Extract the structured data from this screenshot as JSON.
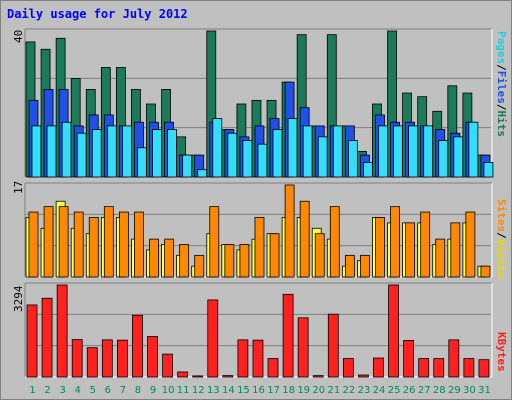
{
  "title": "Daily usage for July 2012",
  "colors": {
    "hits": "#1a7a5a",
    "files": "#2050e8",
    "pages": "#33ddff",
    "visits": "#ffff44",
    "sites": "#ff8800",
    "kbytes": "#ff2020",
    "day_label_weekday": "#008a5a",
    "day_label_weekend": "#008a5a",
    "title": "#0000ff"
  },
  "panels": {
    "top": {
      "max_label": "40",
      "legend": [
        {
          "text": "Pages",
          "color": "#22cce0"
        },
        {
          "text": "/",
          "color": "#000000"
        },
        {
          "text": "Files",
          "color": "#2050e8"
        },
        {
          "text": "/",
          "color": "#000000"
        },
        {
          "text": "Hits",
          "color": "#1a7a5a"
        }
      ]
    },
    "middle": {
      "max_label": "17",
      "legend": [
        {
          "text": "Sites",
          "color": "#ff8800"
        },
        {
          "text": "/",
          "color": "#000000"
        },
        {
          "text": "Visits",
          "color": "#e8d800"
        }
      ]
    },
    "bottom": {
      "max_label": "3294",
      "legend": [
        {
          "text": "KBytes",
          "color": "#ff2020"
        }
      ]
    }
  },
  "chart_data": [
    {
      "type": "bar",
      "title": "Daily usage for July 2012",
      "categories": [
        "1",
        "2",
        "3",
        "4",
        "5",
        "6",
        "7",
        "8",
        "9",
        "10",
        "11",
        "12",
        "13",
        "14",
        "15",
        "16",
        "17",
        "18",
        "19",
        "20",
        "21",
        "22",
        "23",
        "24",
        "25",
        "26",
        "27",
        "28",
        "29",
        "30",
        "31"
      ],
      "ylim": [
        0,
        40
      ],
      "series": [
        {
          "name": "Hits",
          "values": [
            37,
            35,
            38,
            27,
            24,
            30,
            30,
            24,
            20,
            24,
            11,
            6,
            40,
            13,
            20,
            21,
            21,
            26,
            39,
            14,
            39,
            14,
            7,
            20,
            40,
            23,
            22,
            18,
            25,
            23,
            6
          ]
        },
        {
          "name": "Files",
          "values": [
            21,
            24,
            24,
            14,
            17,
            17,
            14,
            15,
            15,
            15,
            6,
            6,
            15,
            13,
            11,
            14,
            16,
            26,
            19,
            14,
            14,
            14,
            6,
            17,
            15,
            15,
            14,
            13,
            12,
            15,
            6
          ]
        },
        {
          "name": "Pages",
          "values": [
            14,
            14,
            15,
            12,
            13,
            14,
            14,
            8,
            13,
            13,
            6,
            2,
            16,
            12,
            10,
            9,
            13,
            16,
            14,
            11,
            14,
            10,
            4,
            14,
            14,
            14,
            14,
            10,
            11,
            15,
            4
          ]
        }
      ]
    },
    {
      "type": "bar",
      "categories": [
        "1",
        "2",
        "3",
        "4",
        "5",
        "6",
        "7",
        "8",
        "9",
        "10",
        "11",
        "12",
        "13",
        "14",
        "15",
        "16",
        "17",
        "18",
        "19",
        "20",
        "21",
        "22",
        "23",
        "24",
        "25",
        "26",
        "27",
        "28",
        "29",
        "30",
        "31"
      ],
      "ylim": [
        0,
        17
      ],
      "series": [
        {
          "name": "Visits",
          "values": [
            11,
            9,
            14,
            9,
            8,
            11,
            11,
            7,
            5,
            6,
            4,
            2,
            8,
            6,
            5,
            7,
            8,
            11,
            11,
            9,
            7,
            2,
            3,
            11,
            10,
            10,
            10,
            6,
            7,
            10,
            2
          ]
        },
        {
          "name": "Sites",
          "values": [
            12,
            13,
            13,
            12,
            11,
            13,
            12,
            12,
            7,
            7,
            6,
            4,
            13,
            6,
            6,
            11,
            8,
            17,
            14,
            8,
            13,
            4,
            4,
            11,
            13,
            10,
            12,
            7,
            10,
            12,
            2
          ]
        }
      ]
    },
    {
      "type": "bar",
      "categories": [
        "1",
        "2",
        "3",
        "4",
        "5",
        "6",
        "7",
        "8",
        "9",
        "10",
        "11",
        "12",
        "13",
        "14",
        "15",
        "16",
        "17",
        "18",
        "19",
        "20",
        "21",
        "22",
        "23",
        "24",
        "25",
        "26",
        "27",
        "28",
        "29",
        "30",
        "31"
      ],
      "ylim": [
        0,
        3294
      ],
      "series": [
        {
          "name": "KBytes",
          "values": [
            2580,
            2820,
            3294,
            1340,
            1050,
            1330,
            1320,
            2210,
            1450,
            820,
            180,
            40,
            2760,
            50,
            1330,
            1320,
            660,
            2960,
            2120,
            50,
            2250,
            660,
            70,
            680,
            3294,
            1310,
            660,
            660,
            1330,
            660,
            620
          ]
        }
      ]
    }
  ]
}
